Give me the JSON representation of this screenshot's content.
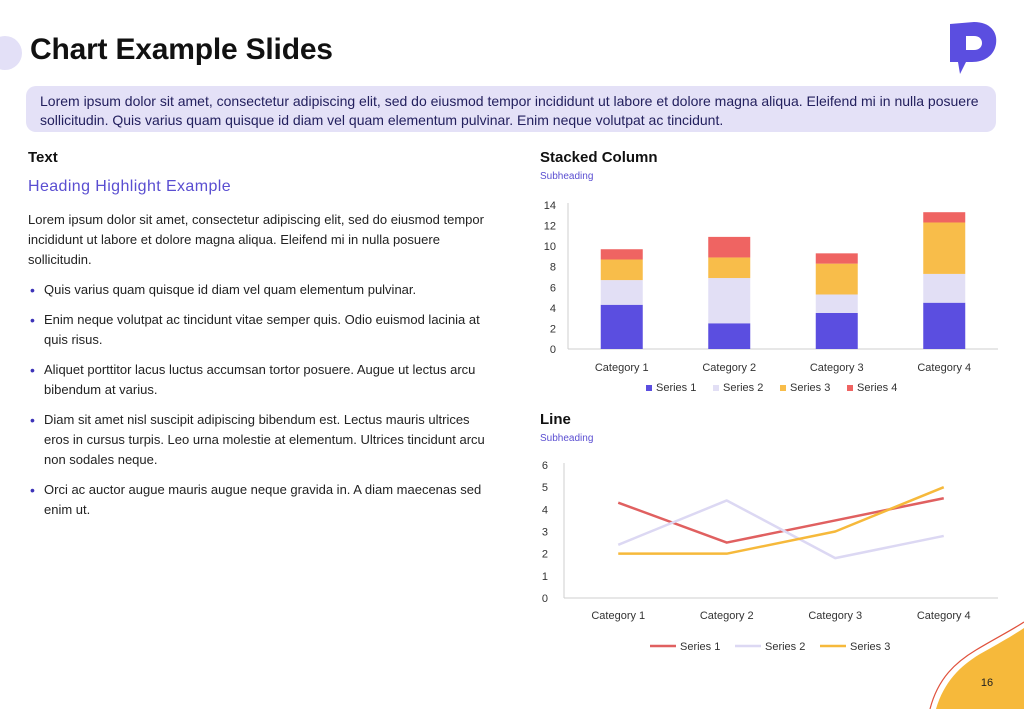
{
  "slide": {
    "title": "Chart Example Slides",
    "intro": "Lorem ipsum dolor sit amet, consectetur adipiscing elit, sed do eiusmod tempor incididunt ut labore et dolore magna aliqua. Eleifend mi in nulla posuere sollicitudin. Quis varius quam quisque id diam vel quam elementum pulvinar. Enim neque volutpat ac tincidunt.",
    "page_number": "16",
    "colors": {
      "accent": "#5a4ed1",
      "banner_bg": "#e4e1f7",
      "wave": "#f6b93b",
      "wave_outline": "#e0513c"
    }
  },
  "text_section": {
    "label": "Text",
    "heading": "Heading Highlight Example",
    "paragraph": "Lorem ipsum dolor sit amet, consectetur adipiscing elit, sed do eiusmod tempor incididunt ut labore et dolore magna aliqua. Eleifend mi in nulla posuere sollicitudin.",
    "bullets": [
      "Quis varius quam quisque id diam vel quam elementum pulvinar.",
      "Enim neque volutpat ac tincidunt vitae semper quis. Odio euismod lacinia at quis risus.",
      "Aliquet porttitor lacus luctus accumsan tortor posuere. Augue ut lectus arcu bibendum at varius.",
      "Diam sit amet nisl suscipit adipiscing bibendum est. Lectus mauris ultrices eros in cursus turpis. Leo urna molestie at elementum. Ultrices tincidunt arcu non sodales neque.",
      "Orci ac auctor augue mauris augue neque gravida in. A diam maecenas sed enim ut."
    ]
  },
  "chart_data": [
    {
      "type": "bar",
      "stacked": true,
      "title": "Stacked Column",
      "subtitle": "Subheading",
      "categories": [
        "Category 1",
        "Category 2",
        "Category 3",
        "Category 4"
      ],
      "series": [
        {
          "name": "Series 1",
          "color": "#5b4ee0",
          "values": [
            4.3,
            2.5,
            3.5,
            4.5
          ]
        },
        {
          "name": "Series 2",
          "color": "#e2dff5",
          "values": [
            2.4,
            4.4,
            1.8,
            2.8
          ]
        },
        {
          "name": "Series 3",
          "color": "#f8bd4a",
          "values": [
            2,
            2,
            3,
            5
          ]
        },
        {
          "name": "Series 4",
          "color": "#ef6462",
          "values": [
            1,
            2,
            1,
            1
          ]
        }
      ],
      "ylim": [
        0,
        14
      ],
      "yticks": [
        0,
        2,
        4,
        6,
        8,
        10,
        12,
        14
      ],
      "xlabel": "",
      "ylabel": "",
      "legend": "bottom"
    },
    {
      "type": "line",
      "title": "Line",
      "subtitle": "Subheading",
      "categories": [
        "Category 1",
        "Category 2",
        "Category 3",
        "Category 4"
      ],
      "series": [
        {
          "name": "Series 1",
          "color": "#e06060",
          "values": [
            4.3,
            2.5,
            3.5,
            4.5
          ]
        },
        {
          "name": "Series 2",
          "color": "#dcd8f3",
          "values": [
            2.4,
            4.4,
            1.8,
            2.8
          ]
        },
        {
          "name": "Series 3",
          "color": "#f6b93b",
          "values": [
            2,
            2,
            3,
            5
          ]
        }
      ],
      "ylim": [
        0,
        6
      ],
      "yticks": [
        0,
        1,
        2,
        3,
        4,
        5,
        6
      ],
      "xlabel": "",
      "ylabel": "",
      "legend": "bottom"
    }
  ]
}
